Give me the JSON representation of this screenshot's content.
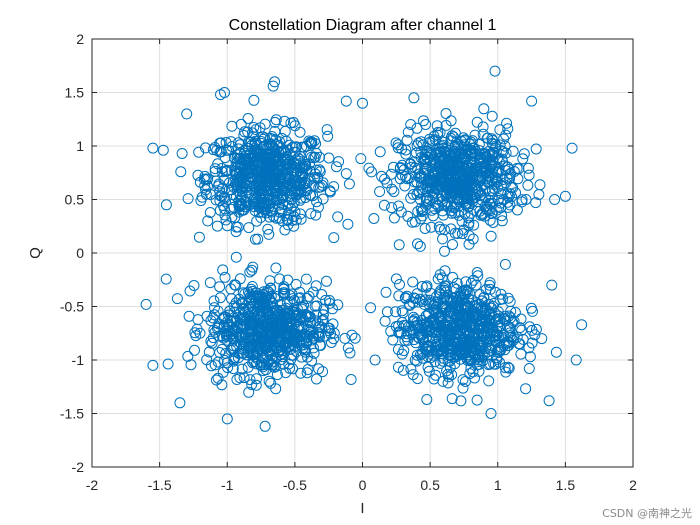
{
  "chart_data": {
    "type": "scatter",
    "title": "Constellation Diagram after channel 1",
    "xlabel": "I",
    "ylabel": "Q",
    "xlim": [
      -2,
      2
    ],
    "ylim": [
      -2,
      2
    ],
    "xticks": [
      -2,
      -1.5,
      -1,
      -0.5,
      0,
      0.5,
      1,
      1.5,
      2
    ],
    "yticks": [
      -2,
      -1.5,
      -1,
      -0.5,
      0,
      0.5,
      1,
      1.5,
      2
    ],
    "xtick_labels": [
      "-2",
      "-1.5",
      "-1",
      "-0.5",
      "0",
      "0.5",
      "1",
      "1.5",
      "2"
    ],
    "ytick_labels": [
      "-2",
      "-1.5",
      "-1",
      "-0.5",
      "0",
      "0.5",
      "1",
      "1.5",
      "2"
    ],
    "grid": true,
    "marker": "open-circle",
    "color": "#0072BD",
    "series": [
      {
        "clusters": [
          {
            "center": [
              -0.707,
              0.707
            ],
            "spread": 0.22
          },
          {
            "center": [
              0.707,
              0.707
            ],
            "spread": 0.22
          },
          {
            "center": [
              -0.707,
              -0.707
            ],
            "spread": 0.22
          },
          {
            "center": [
              0.707,
              -0.707
            ],
            "spread": 0.22
          }
        ],
        "outliers": [
          [
            0.98,
            1.7
          ],
          [
            -0.65,
            1.6
          ],
          [
            -0.66,
            1.56
          ],
          [
            -1.6,
            -0.48
          ],
          [
            1.62,
            -0.67
          ],
          [
            1.58,
            -1.0
          ],
          [
            -1.55,
            -1.05
          ],
          [
            1.55,
            0.98
          ],
          [
            -1.55,
            0.98
          ],
          [
            -0.72,
            -1.62
          ],
          [
            -1.05,
            1.48
          ],
          [
            -1.02,
            1.5
          ],
          [
            0.38,
            1.45
          ],
          [
            -0.12,
            1.42
          ],
          [
            1.42,
            0.5
          ],
          [
            1.5,
            0.53
          ],
          [
            -1.45,
            0.45
          ],
          [
            -1.35,
            -1.4
          ],
          [
            1.38,
            -1.38
          ],
          [
            0.95,
            -1.5
          ],
          [
            -1.0,
            -1.55
          ],
          [
            -0.0,
            1.4
          ],
          [
            1.25,
            1.42
          ],
          [
            -1.3,
            1.3
          ],
          [
            1.4,
            -0.3
          ]
        ]
      }
    ]
  },
  "watermark": "CSDN @南神之光"
}
